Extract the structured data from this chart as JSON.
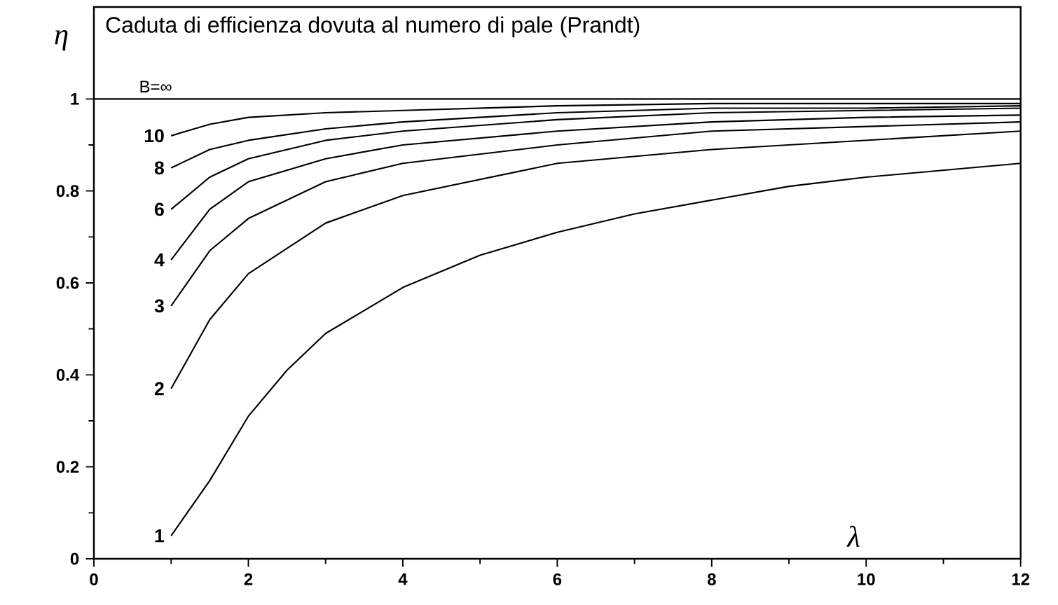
{
  "chart_data": {
    "type": "line",
    "title": "Caduta di efficienza dovuta al numero di pale (Prandt)",
    "xlabel": "λ",
    "ylabel": "η",
    "xlim": [
      0,
      12
    ],
    "ylim": [
      0,
      1.2
    ],
    "xticks": [
      0,
      2,
      4,
      6,
      8,
      10,
      12
    ],
    "yticks": [
      0,
      0.2,
      0.4,
      0.6,
      0.8,
      1
    ],
    "grid": false,
    "marker": "none",
    "line_style": "solid",
    "series": [
      {
        "name": "B=∞",
        "color": "#000000",
        "x": [
          0,
          12
        ],
        "values": [
          1,
          1
        ]
      },
      {
        "name": "10",
        "color": "#000000",
        "x": [
          1,
          1.5,
          2,
          3,
          4,
          6,
          8,
          10,
          12
        ],
        "values": [
          0.92,
          0.945,
          0.96,
          0.97,
          0.975,
          0.985,
          0.99,
          0.99,
          0.99
        ]
      },
      {
        "name": "8",
        "color": "#000000",
        "x": [
          1,
          1.5,
          2,
          3,
          4,
          6,
          8,
          10,
          12
        ],
        "values": [
          0.85,
          0.89,
          0.91,
          0.935,
          0.95,
          0.97,
          0.98,
          0.98,
          0.985
        ]
      },
      {
        "name": "6",
        "color": "#000000",
        "x": [
          1,
          1.5,
          2,
          3,
          4,
          6,
          8,
          10,
          12
        ],
        "values": [
          0.76,
          0.83,
          0.87,
          0.91,
          0.93,
          0.955,
          0.97,
          0.975,
          0.98
        ]
      },
      {
        "name": "4",
        "color": "#000000",
        "x": [
          1,
          1.5,
          2,
          3,
          4,
          6,
          8,
          10,
          12
        ],
        "values": [
          0.65,
          0.76,
          0.82,
          0.87,
          0.9,
          0.93,
          0.95,
          0.96,
          0.965
        ]
      },
      {
        "name": "3",
        "color": "#000000",
        "x": [
          1,
          1.5,
          2,
          3,
          4,
          6,
          8,
          10,
          12
        ],
        "values": [
          0.55,
          0.67,
          0.74,
          0.82,
          0.86,
          0.9,
          0.93,
          0.94,
          0.95
        ]
      },
      {
        "name": "2",
        "color": "#000000",
        "x": [
          1,
          1.5,
          2,
          3,
          4,
          6,
          8,
          10,
          12
        ],
        "values": [
          0.37,
          0.52,
          0.62,
          0.73,
          0.79,
          0.86,
          0.89,
          0.91,
          0.93
        ]
      },
      {
        "name": "1",
        "color": "#000000",
        "x": [
          1,
          1.5,
          2,
          2.5,
          3,
          4,
          5,
          6,
          7,
          8,
          9,
          10,
          12
        ],
        "values": [
          0.05,
          0.17,
          0.31,
          0.41,
          0.49,
          0.59,
          0.66,
          0.71,
          0.75,
          0.78,
          0.81,
          0.83,
          0.86
        ]
      }
    ]
  }
}
